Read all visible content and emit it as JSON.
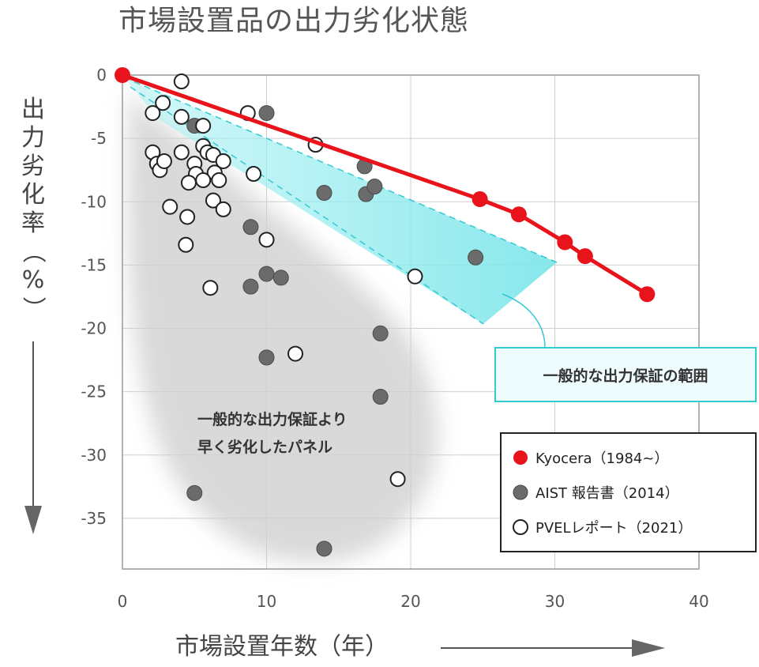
{
  "chart_data": {
    "type": "scatter",
    "title": "市場設置品の出力劣化状態",
    "xlabel": "市場設置年数（年）",
    "ylabel": "出力劣化率（%）",
    "xlim": [
      0,
      40
    ],
    "ylim": [
      -39,
      0
    ],
    "xticks": [
      0,
      10,
      20,
      30,
      40
    ],
    "yticks": [
      0,
      -5,
      -10,
      -15,
      -20,
      -25,
      -30,
      -35
    ],
    "grid": true,
    "legend_position": "bottom-right",
    "annotations": {
      "warranty_range": "一般的な出力保証の範囲",
      "early_degradation_line1": "一般的な出力保証より",
      "early_degradation_line2": "早く劣化したパネル"
    },
    "series": [
      {
        "name": "Kyocera（1984~）",
        "color": "#e8131b",
        "marker": "filled",
        "line": true,
        "points": [
          [
            0,
            0
          ],
          [
            24.8,
            -9.8
          ],
          [
            27.5,
            -11.0
          ],
          [
            30.7,
            -13.2
          ],
          [
            32.1,
            -14.3
          ],
          [
            36.4,
            -17.3
          ]
        ]
      },
      {
        "name": "AIST 報告書（2014）",
        "color": "#6b6b6b",
        "marker": "filled",
        "line": false,
        "points": [
          [
            5.0,
            -4.0
          ],
          [
            10.0,
            -3.0
          ],
          [
            14.0,
            -9.3
          ],
          [
            16.8,
            -7.2
          ],
          [
            16.9,
            -9.4
          ],
          [
            17.5,
            -8.8
          ],
          [
            8.9,
            -12.0
          ],
          [
            8.9,
            -16.7
          ],
          [
            10.0,
            -15.7
          ],
          [
            11.0,
            -16.0
          ],
          [
            10.0,
            -22.3
          ],
          [
            17.9,
            -20.4
          ],
          [
            17.9,
            -25.4
          ],
          [
            24.5,
            -14.4
          ],
          [
            5.0,
            -33.0
          ],
          [
            14.0,
            -37.4
          ]
        ]
      },
      {
        "name": "PVELレポート（2021）",
        "color": "#ffffff",
        "marker": "open",
        "line": false,
        "points": [
          [
            4.1,
            -0.5
          ],
          [
            2.8,
            -2.2
          ],
          [
            2.1,
            -3.0
          ],
          [
            4.1,
            -3.3
          ],
          [
            5.6,
            -4.0
          ],
          [
            8.7,
            -3.0
          ],
          [
            2.1,
            -6.1
          ],
          [
            2.4,
            -7.0
          ],
          [
            2.6,
            -7.5
          ],
          [
            2.9,
            -6.8
          ],
          [
            4.1,
            -6.1
          ],
          [
            5.0,
            -7.0
          ],
          [
            5.1,
            -7.8
          ],
          [
            5.6,
            -5.6
          ],
          [
            5.9,
            -6.1
          ],
          [
            6.3,
            -6.3
          ],
          [
            6.4,
            -7.7
          ],
          [
            7.0,
            -6.8
          ],
          [
            6.7,
            -8.3
          ],
          [
            4.6,
            -8.5
          ],
          [
            5.6,
            -8.3
          ],
          [
            6.3,
            -9.9
          ],
          [
            7.0,
            -10.6
          ],
          [
            3.3,
            -10.4
          ],
          [
            4.5,
            -11.2
          ],
          [
            4.4,
            -13.4
          ],
          [
            6.1,
            -16.8
          ],
          [
            9.1,
            -7.8
          ],
          [
            10.0,
            -13.0
          ],
          [
            13.4,
            -5.5
          ],
          [
            12.0,
            -22.0
          ],
          [
            20.3,
            -15.9
          ],
          [
            19.1,
            -31.9
          ]
        ]
      }
    ]
  }
}
